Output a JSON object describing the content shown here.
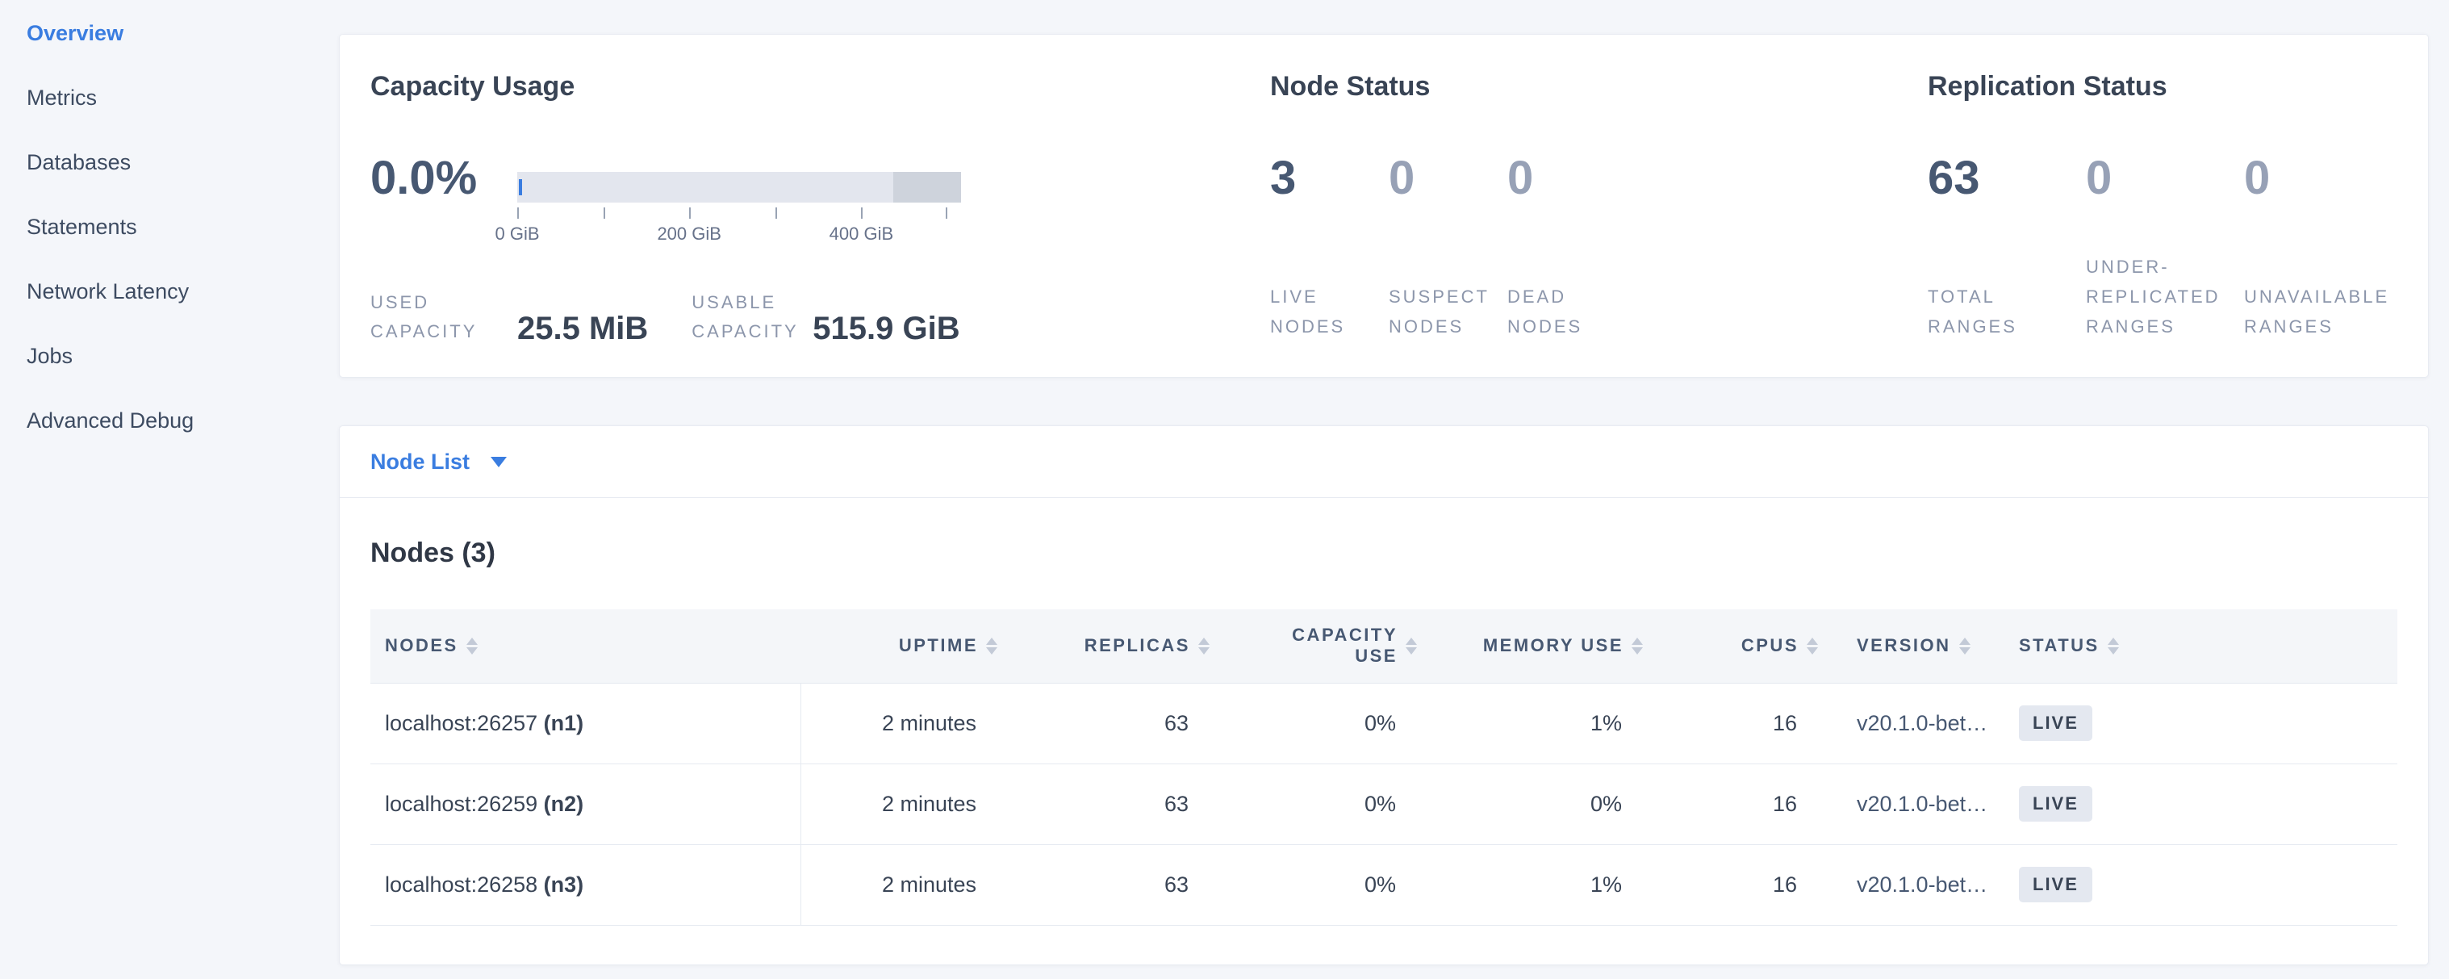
{
  "colors": {
    "accent_blue": "#3a7de0",
    "badge_bg": "#e4e8f0",
    "used_bar_blue": "#3a7de0"
  },
  "sidebar": {
    "items": [
      {
        "label": "Overview",
        "active": true
      },
      {
        "label": "Metrics",
        "active": false
      },
      {
        "label": "Databases",
        "active": false
      },
      {
        "label": "Statements",
        "active": false
      },
      {
        "label": "Network Latency",
        "active": false
      },
      {
        "label": "Jobs",
        "active": false
      },
      {
        "label": "Advanced Debug",
        "active": false
      }
    ]
  },
  "summary": {
    "capacity": {
      "title": "Capacity Usage",
      "percent": "0.0%",
      "bar": {
        "reserved_start_pct": 84.7,
        "ticks": [
          "0 GiB",
          "200 GiB",
          "400 GiB"
        ]
      },
      "stats": [
        {
          "label": "USED CAPACITY",
          "value": "25.5 MiB"
        },
        {
          "label": "USABLE CAPACITY",
          "value": "515.9 GiB"
        }
      ]
    },
    "node_status": {
      "title": "Node Status",
      "stats": [
        {
          "value": "3",
          "label": "LIVE NODES",
          "dim": false
        },
        {
          "value": "0",
          "label": "SUSPECT NODES",
          "dim": true
        },
        {
          "value": "0",
          "label": "DEAD NODES",
          "dim": true
        }
      ]
    },
    "replication": {
      "title": "Replication Status",
      "stats": [
        {
          "value": "63",
          "label": "TOTAL RANGES",
          "dim": false
        },
        {
          "value": "0",
          "label": "UNDER-REPLICATED RANGES",
          "dim": true
        },
        {
          "value": "0",
          "label": "UNAVAILABLE RANGES",
          "dim": true
        }
      ]
    }
  },
  "nodes_section": {
    "dropdown_label": "Node List",
    "heading": "Nodes (3)",
    "table": {
      "columns": [
        "NODES",
        "UPTIME",
        "REPLICAS",
        "CAPACITY USE",
        "MEMORY USE",
        "CPUS",
        "VERSION",
        "STATUS"
      ],
      "rows": [
        {
          "address": "localhost:26257",
          "name": "(n1)",
          "uptime": "2 minutes",
          "replicas": "63",
          "capacity_use": "0%",
          "memory_use": "1%",
          "cpus": "16",
          "version": "v20.1.0-bet…",
          "status": "LIVE"
        },
        {
          "address": "localhost:26259",
          "name": "(n2)",
          "uptime": "2 minutes",
          "replicas": "63",
          "capacity_use": "0%",
          "memory_use": "0%",
          "cpus": "16",
          "version": "v20.1.0-bet…",
          "status": "LIVE"
        },
        {
          "address": "localhost:26258",
          "name": "(n3)",
          "uptime": "2 minutes",
          "replicas": "63",
          "capacity_use": "0%",
          "memory_use": "1%",
          "cpus": "16",
          "version": "v20.1.0-bet…",
          "status": "LIVE"
        }
      ]
    }
  }
}
